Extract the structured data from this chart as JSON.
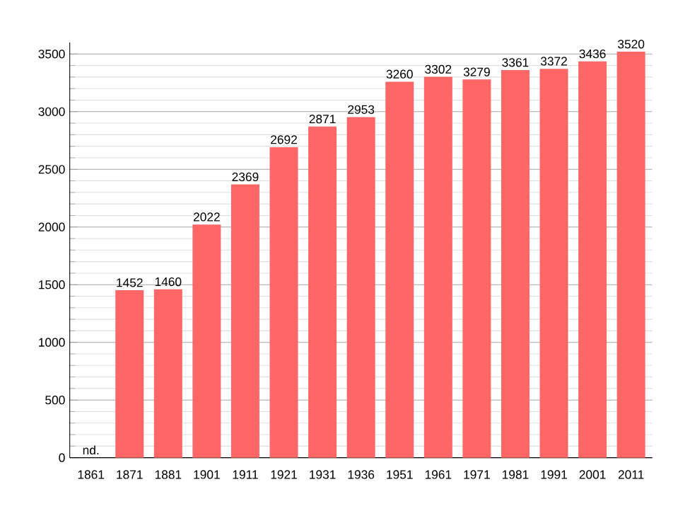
{
  "chart_data": {
    "type": "bar",
    "categories": [
      "1861",
      "1871",
      "1881",
      "1901",
      "1911",
      "1921",
      "1931",
      "1936",
      "1951",
      "1961",
      "1971",
      "1981",
      "1991",
      "2001",
      "2011"
    ],
    "values": [
      null,
      1452,
      1460,
      2022,
      2369,
      2692,
      2871,
      2953,
      3260,
      3302,
      3279,
      3361,
      3372,
      3436,
      3520
    ],
    "value_labels": [
      "nd.",
      "1452",
      "1460",
      "2022",
      "2369",
      "2692",
      "2871",
      "2953",
      "3260",
      "3302",
      "3279",
      "3361",
      "3372",
      "3436",
      "3520"
    ],
    "color": "#ff6666",
    "ylim": [
      0,
      3600
    ],
    "yticks": [
      0,
      500,
      1000,
      1500,
      2000,
      2500,
      3000,
      3500
    ],
    "grid": "y"
  }
}
